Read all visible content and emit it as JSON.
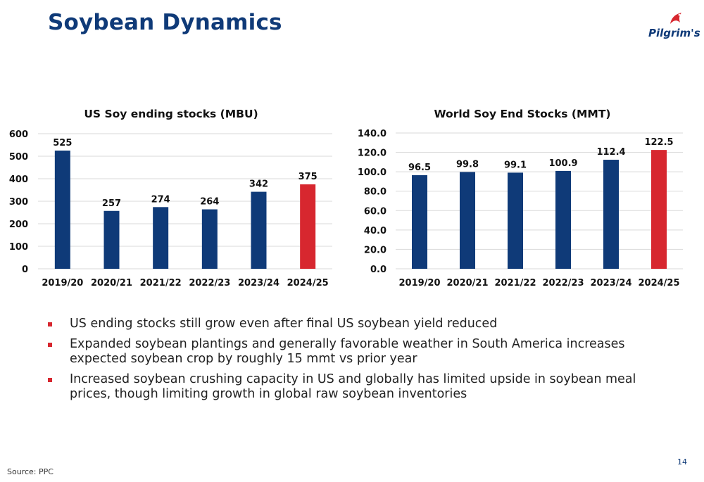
{
  "slide": {
    "title": "Soybean Dynamics",
    "logo_text": "Pilgrim's",
    "source": "Source: PPC",
    "page_number": "14"
  },
  "bullets": [
    "US ending stocks still grow even after final US soybean yield reduced",
    "Expanded soybean plantings and generally favorable weather in South America increases expected soybean crop by roughly 15 mmt vs prior year",
    "Increased soybean crushing capacity in US and globally has limited upside in soybean meal prices, though limiting growth in global raw soybean inventories"
  ],
  "colors": {
    "title": "#0f3a78",
    "bar_primary": "#0f3a78",
    "bar_highlight": "#d7272f",
    "bullet": "#d7272f",
    "grid": "#d9d9d9"
  },
  "chart_data": [
    {
      "type": "bar",
      "title": "US Soy ending stocks (MBU)",
      "categories": [
        "2019/20",
        "2020/21",
        "2021/22",
        "2022/23",
        "2023/24",
        "2024/25"
      ],
      "values": [
        525,
        257,
        274,
        264,
        342,
        375
      ],
      "value_labels": [
        "525",
        "257",
        "274",
        "264",
        "342",
        "375"
      ],
      "highlight_index": 5,
      "ylim": [
        0,
        600
      ],
      "yticks": [
        0,
        100,
        200,
        300,
        400,
        500,
        600
      ],
      "ytick_labels": [
        "0",
        "100",
        "200",
        "300",
        "400",
        "500",
        "600"
      ],
      "grid": true,
      "xlabel": "",
      "ylabel": ""
    },
    {
      "type": "bar",
      "title": "World Soy End Stocks (MMT)",
      "categories": [
        "2019/20",
        "2020/21",
        "2021/22",
        "2022/23",
        "2023/24",
        "2024/25"
      ],
      "values": [
        96.5,
        99.8,
        99.1,
        100.9,
        112.4,
        122.5
      ],
      "value_labels": [
        "96.5",
        "99.8",
        "99.1",
        "100.9",
        "112.4",
        "122.5"
      ],
      "highlight_index": 5,
      "ylim": [
        0,
        140
      ],
      "yticks": [
        0,
        20,
        40,
        60,
        80,
        100,
        120,
        140
      ],
      "ytick_labels": [
        "0.0",
        "20.0",
        "40.0",
        "60.0",
        "80.0",
        "100.0",
        "120.0",
        "140.0"
      ],
      "grid": true,
      "xlabel": "",
      "ylabel": ""
    }
  ]
}
